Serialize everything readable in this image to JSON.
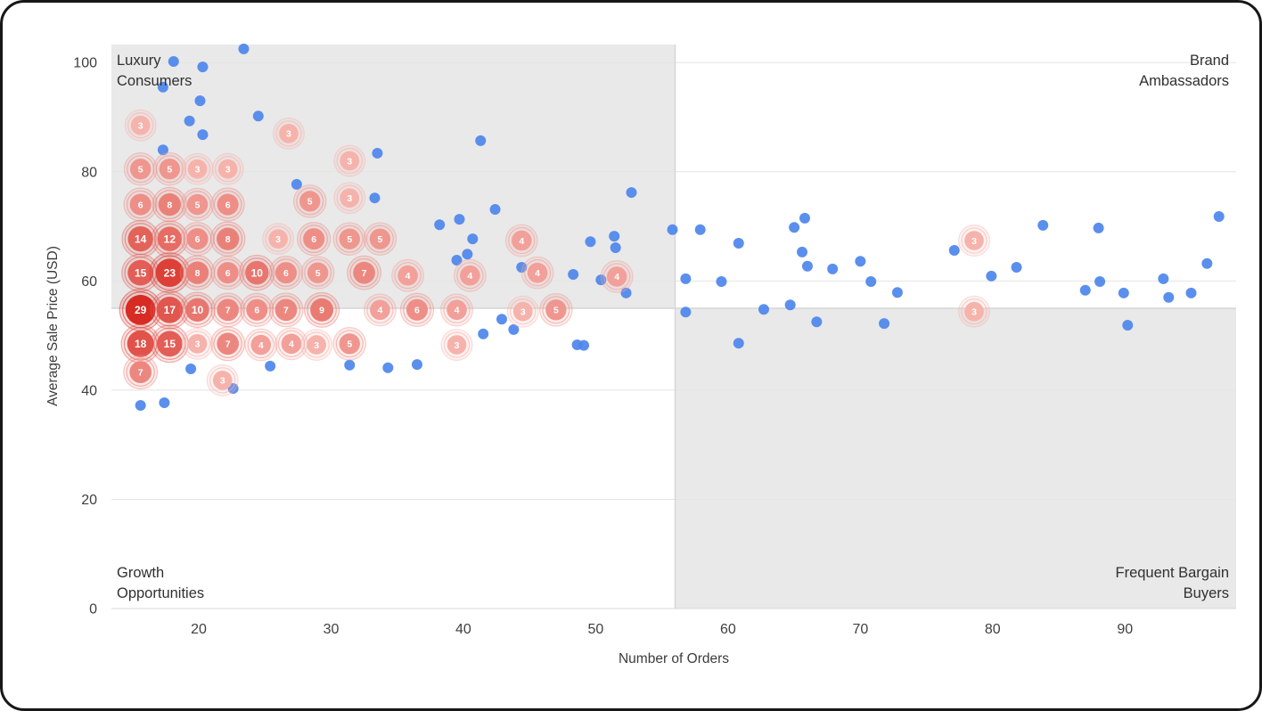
{
  "colors": {
    "point_blue": "#4d86ec",
    "cluster_light": "#f6b3ac",
    "cluster_dark": "#d72c23",
    "quadrant_shade": "#e9e9e9",
    "divider": "#d6d6d6",
    "grid": "#e4e4e4",
    "axis_line": "#d8d8d8",
    "axis_text": "#404040",
    "label_text": "#303030"
  },
  "chart_data": {
    "type": "scatter",
    "title": "",
    "xlabel": "Number of Orders",
    "ylabel": "Average Sale Price (USD)",
    "xlim": [
      13.4,
      98.4
    ],
    "ylim": [
      0,
      103.3
    ],
    "x_ticks": [
      20,
      30,
      40,
      50,
      60,
      70,
      80,
      90
    ],
    "y_ticks": [
      0,
      20,
      40,
      60,
      80,
      100
    ],
    "grid": true,
    "legend": "none",
    "quadrants": {
      "x_divider": 56,
      "y_divider": 55,
      "shaded": [
        "top-left",
        "bottom-right"
      ],
      "labels": {
        "top_left": [
          "Luxury",
          "Consumers"
        ],
        "top_right": [
          "Brand",
          "Ambassadors"
        ],
        "bottom_left": [
          "Growth",
          "Opportunities"
        ],
        "bottom_right": [
          "Frequent Bargain",
          "Buyers"
        ]
      }
    },
    "series": [
      {
        "name": "customers",
        "type": "scatter",
        "points": [
          [
            23.4,
            102.5
          ],
          [
            20.3,
            99.2
          ],
          [
            18.1,
            100.2
          ],
          [
            17.3,
            95.5
          ],
          [
            20.1,
            93.0
          ],
          [
            19.3,
            89.3
          ],
          [
            24.5,
            90.2
          ],
          [
            20.3,
            86.8
          ],
          [
            17.3,
            84.0
          ],
          [
            33.5,
            83.4
          ],
          [
            41.3,
            85.7
          ],
          [
            27.4,
            77.7
          ],
          [
            33.3,
            75.2
          ],
          [
            52.7,
            76.2
          ],
          [
            38.2,
            70.3
          ],
          [
            39.7,
            71.3
          ],
          [
            42.4,
            73.1
          ],
          [
            40.7,
            67.7
          ],
          [
            39.5,
            63.8
          ],
          [
            40.3,
            64.9
          ],
          [
            44.4,
            62.5
          ],
          [
            49.6,
            67.2
          ],
          [
            51.4,
            68.2
          ],
          [
            51.5,
            66.1
          ],
          [
            48.3,
            61.2
          ],
          [
            50.4,
            60.2
          ],
          [
            52.3,
            57.8
          ],
          [
            48.6,
            48.3
          ],
          [
            49.1,
            48.2
          ],
          [
            42.9,
            53.0
          ],
          [
            41.5,
            50.3
          ],
          [
            43.8,
            51.1
          ],
          [
            36.5,
            44.7
          ],
          [
            34.3,
            44.1
          ],
          [
            31.4,
            44.6
          ],
          [
            25.4,
            44.4
          ],
          [
            19.4,
            43.9
          ],
          [
            22.6,
            40.3
          ],
          [
            15.6,
            37.2
          ],
          [
            17.4,
            37.7
          ],
          [
            55.8,
            69.4
          ],
          [
            57.9,
            69.4
          ],
          [
            56.8,
            60.4
          ],
          [
            56.8,
            54.3
          ],
          [
            59.5,
            59.9
          ],
          [
            60.8,
            66.9
          ],
          [
            60.8,
            48.6
          ],
          [
            62.7,
            54.8
          ],
          [
            64.7,
            55.6
          ],
          [
            65.0,
            69.8
          ],
          [
            65.8,
            71.5
          ],
          [
            65.6,
            65.3
          ],
          [
            66.0,
            62.7
          ],
          [
            66.7,
            52.5
          ],
          [
            67.9,
            62.2
          ],
          [
            70.0,
            63.6
          ],
          [
            70.8,
            59.9
          ],
          [
            71.8,
            52.2
          ],
          [
            72.8,
            57.9
          ],
          [
            77.1,
            65.6
          ],
          [
            79.9,
            60.9
          ],
          [
            81.8,
            62.5
          ],
          [
            83.8,
            70.2
          ],
          [
            87.0,
            58.3
          ],
          [
            88.0,
            69.7
          ],
          [
            88.1,
            59.9
          ],
          [
            89.9,
            57.8
          ],
          [
            90.2,
            51.9
          ],
          [
            92.9,
            60.4
          ],
          [
            93.3,
            57.0
          ],
          [
            95.0,
            57.8
          ],
          [
            96.2,
            63.2
          ],
          [
            97.1,
            71.8
          ]
        ]
      },
      {
        "name": "clusters",
        "type": "bubble-cluster",
        "note": "each point is [orders, avg_sale_price, count]",
        "points": [
          [
            15.6,
            88.5,
            3
          ],
          [
            26.8,
            87.0,
            3
          ],
          [
            15.6,
            80.5,
            5
          ],
          [
            17.8,
            80.5,
            5
          ],
          [
            19.9,
            80.5,
            3
          ],
          [
            22.2,
            80.5,
            3
          ],
          [
            31.4,
            82.0,
            3
          ],
          [
            15.6,
            74.0,
            6
          ],
          [
            17.8,
            74.0,
            8
          ],
          [
            19.9,
            74.0,
            5
          ],
          [
            22.2,
            74.0,
            6
          ],
          [
            28.4,
            74.6,
            5
          ],
          [
            31.4,
            75.2,
            3
          ],
          [
            15.6,
            67.7,
            14
          ],
          [
            17.8,
            67.7,
            12
          ],
          [
            19.9,
            67.7,
            6
          ],
          [
            22.2,
            67.7,
            8
          ],
          [
            26.0,
            67.7,
            3
          ],
          [
            28.7,
            67.7,
            6
          ],
          [
            31.4,
            67.7,
            5
          ],
          [
            33.7,
            67.7,
            5
          ],
          [
            44.4,
            67.4,
            4
          ],
          [
            15.6,
            61.5,
            15
          ],
          [
            17.8,
            61.5,
            23
          ],
          [
            19.9,
            61.5,
            8
          ],
          [
            22.2,
            61.5,
            6
          ],
          [
            24.4,
            61.5,
            10
          ],
          [
            26.6,
            61.5,
            6
          ],
          [
            29.0,
            61.5,
            5
          ],
          [
            32.5,
            61.5,
            7
          ],
          [
            35.8,
            61.0,
            4
          ],
          [
            40.5,
            61.0,
            4
          ],
          [
            45.6,
            61.5,
            4
          ],
          [
            51.6,
            60.8,
            4
          ],
          [
            15.6,
            54.7,
            29
          ],
          [
            17.8,
            54.7,
            17
          ],
          [
            19.9,
            54.7,
            10
          ],
          [
            22.2,
            54.7,
            7
          ],
          [
            24.4,
            54.7,
            6
          ],
          [
            26.6,
            54.7,
            7
          ],
          [
            29.3,
            54.7,
            9
          ],
          [
            33.7,
            54.7,
            4
          ],
          [
            36.5,
            54.7,
            6
          ],
          [
            39.5,
            54.7,
            4
          ],
          [
            44.5,
            54.4,
            3
          ],
          [
            47.0,
            54.7,
            5
          ],
          [
            78.6,
            54.4,
            3
          ],
          [
            15.6,
            48.5,
            18
          ],
          [
            17.8,
            48.5,
            15
          ],
          [
            19.9,
            48.5,
            3
          ],
          [
            22.2,
            48.5,
            7
          ],
          [
            24.7,
            48.3,
            4
          ],
          [
            27.0,
            48.5,
            4
          ],
          [
            28.9,
            48.3,
            3
          ],
          [
            31.4,
            48.5,
            5
          ],
          [
            39.5,
            48.3,
            3
          ],
          [
            15.6,
            43.3,
            7
          ],
          [
            21.8,
            41.8,
            3
          ],
          [
            78.6,
            67.4,
            3
          ]
        ]
      }
    ]
  }
}
